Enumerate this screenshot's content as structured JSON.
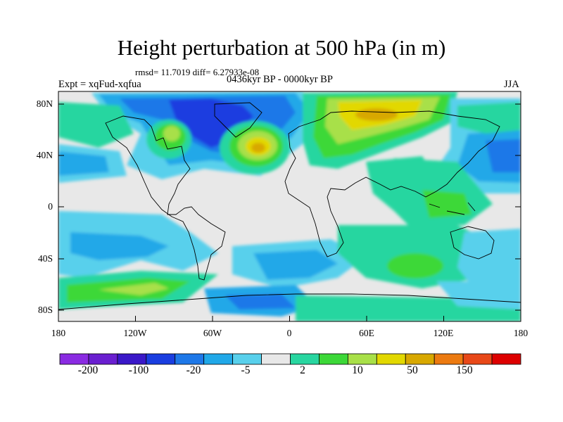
{
  "title": "Height perturbation at 500 hPa (in m)",
  "stats_text": "rmsd= 11.7019 diff= 6.27933e-08",
  "experiment": "Expt = xqFud-xqfua",
  "period": "0436kyr BP - 0000kyr BP",
  "season": "JJA",
  "lat_labels": [
    "80N",
    "40N",
    "0",
    "40S",
    "80S"
  ],
  "lon_labels": [
    "180",
    "120W",
    "60W",
    "0",
    "60E",
    "120E",
    "180"
  ],
  "colorbar": {
    "colors": [
      "#8a2be2",
      "#6a1fd0",
      "#3a18c8",
      "#1a3ee0",
      "#1e78e8",
      "#20a8e8",
      "#58d0ec",
      "#e8e8e8",
      "#28d6a0",
      "#3cd838",
      "#a8e048",
      "#e2d800",
      "#d8a800",
      "#ec7a10",
      "#e84818",
      "#dd0000"
    ],
    "labels": [
      "-200",
      "-100",
      "-20",
      "-5",
      "2",
      "10",
      "50",
      "150"
    ]
  },
  "colors": {
    "neutral": "#e8e8e8",
    "cyan": "#58d0ec",
    "mid_blue": "#20a8e8",
    "blue": "#1e78e8",
    "deep_blue": "#1a3ee0",
    "teal": "#28d6a0",
    "green": "#3cd838",
    "lime": "#a8e048",
    "yellow": "#e2d800",
    "orange": "#d8a800"
  }
}
